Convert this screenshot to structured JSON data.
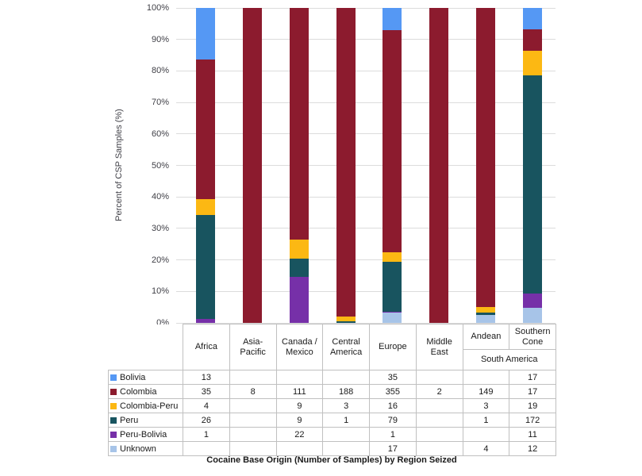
{
  "chart": {
    "y_axis_label": "Percent of CSP Samples (%)",
    "bottom_title": "Cocaine Base Origin (Number of Samples) by Region Seized",
    "y_tick_labels": [
      "0%",
      "10%",
      "20%",
      "30%",
      "40%",
      "50%",
      "60%",
      "70%",
      "80%",
      "90%",
      "100%"
    ]
  },
  "chart_data": {
    "type": "bar",
    "stacked": true,
    "percent_stacked": true,
    "title": "Cocaine Base Origin (Number of Samples) by Region Seized",
    "xlabel": "Cocaine Base Origin (Number of Samples) by Region Seized",
    "ylabel": "Percent of CSP Samples (%)",
    "ylim": [
      0,
      100
    ],
    "grid": true,
    "legend_position": "table-left-column",
    "categories": [
      "Africa",
      "Asia-Pacific",
      "Canada / Mexico",
      "Central America",
      "Europe",
      "Middle East",
      "Andean",
      "Southern Cone"
    ],
    "category_header_lines": [
      [
        "Africa"
      ],
      [
        "Asia-",
        "Pacific"
      ],
      [
        "Canada /",
        "Mexico"
      ],
      [
        "Central",
        "America"
      ],
      [
        "Europe"
      ],
      [
        "Middle",
        "East"
      ],
      [
        "Andean"
      ],
      [
        "Southern",
        "Cone"
      ]
    ],
    "category_groups": [
      {
        "label": "South America",
        "start_index": 6,
        "span": 2
      }
    ],
    "series": [
      {
        "name": "Bolivia",
        "color": "#5598F4",
        "values": [
          13,
          null,
          null,
          null,
          35,
          null,
          null,
          17
        ]
      },
      {
        "name": "Colombia",
        "color": "#8C1B2E",
        "values": [
          35,
          8,
          111,
          188,
          355,
          2,
          149,
          17
        ]
      },
      {
        "name": "Colombia-Peru",
        "color": "#FCB813",
        "values": [
          4,
          null,
          9,
          3,
          16,
          null,
          3,
          19
        ]
      },
      {
        "name": "Peru",
        "color": "#18545F",
        "values": [
          26,
          null,
          9,
          1,
          79,
          null,
          1,
          172
        ]
      },
      {
        "name": "Peru-Bolivia",
        "color": "#7630A8",
        "values": [
          1,
          null,
          22,
          null,
          1,
          null,
          null,
          11
        ]
      },
      {
        "name": "Unknown",
        "color": "#A7C4E8",
        "values": [
          null,
          null,
          null,
          null,
          17,
          null,
          4,
          12
        ]
      }
    ],
    "stack_order_bottom_to_top": [
      "Unknown",
      "Peru-Bolivia",
      "Peru",
      "Colombia-Peru",
      "Colombia",
      "Bolivia"
    ]
  },
  "colors": {
    "gridline": "#DCDCDC",
    "table_border": "#C0C0C0",
    "tick_text": "#3F3F46",
    "text": "#1A1A1A"
  }
}
